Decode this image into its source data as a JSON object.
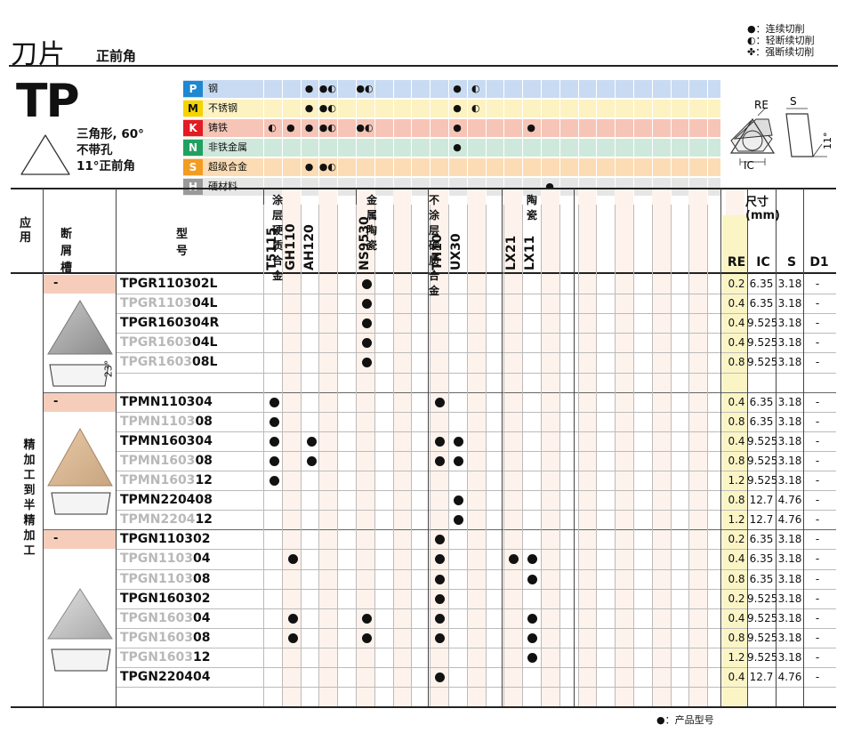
{
  "header": {
    "title": "刀片",
    "subtitle": "正前角"
  },
  "legend": [
    {
      "sym": "●",
      "text": "：连续切削"
    },
    {
      "sym": "◐",
      "text": "：轻断续切削"
    },
    {
      "sym": "✤",
      "text": "：强断续切削"
    }
  ],
  "series": {
    "name": "TP",
    "shape": "三角形, 60°",
    "hole": "不带孔",
    "angle": "11°正前角"
  },
  "materials": [
    {
      "letter": "P",
      "name": "钢",
      "color": "#c8dbf2",
      "lcolor": "#1e88d0",
      "marks": [
        {
          "c": 3,
          "s": "●"
        },
        {
          "c": 4,
          "s": "●◐"
        },
        {
          "c": 6,
          "s": "●◐"
        },
        {
          "c": 11,
          "s": "●"
        },
        {
          "c": 12,
          "s": "◐"
        }
      ]
    },
    {
      "letter": "M",
      "name": "不锈钢",
      "color": "#fdf2c2",
      "lcolor": "#f5d300",
      "marks": [
        {
          "c": 3,
          "s": "●"
        },
        {
          "c": 4,
          "s": "●◐"
        },
        {
          "c": 11,
          "s": "●"
        },
        {
          "c": 12,
          "s": "◐"
        }
      ]
    },
    {
      "letter": "K",
      "name": "铸铁",
      "color": "#f6c5b7",
      "lcolor": "#e31b23",
      "marks": [
        {
          "c": 1,
          "s": "◐"
        },
        {
          "c": 2,
          "s": "●"
        },
        {
          "c": 3,
          "s": "●"
        },
        {
          "c": 4,
          "s": "●◐"
        },
        {
          "c": 6,
          "s": "●◐"
        },
        {
          "c": 11,
          "s": "●"
        },
        {
          "c": 15,
          "s": "●"
        }
      ]
    },
    {
      "letter": "N",
      "name": "非铁金属",
      "color": "#cfe8dc",
      "lcolor": "#22a060",
      "marks": [
        {
          "c": 11,
          "s": "●"
        }
      ]
    },
    {
      "letter": "S",
      "name": "超级合金",
      "color": "#fbdcb4",
      "lcolor": "#f39c22",
      "marks": [
        {
          "c": 3,
          "s": "●"
        },
        {
          "c": 4,
          "s": "●◐"
        }
      ]
    },
    {
      "letter": "H",
      "name": "硬材料",
      "color": "#e6e6e6",
      "lcolor": "#9a9a9a",
      "marks": [
        {
          "c": 16,
          "s": "●"
        }
      ]
    }
  ],
  "geometry": {
    "re": "RE",
    "s": "S",
    "ic": "IC",
    "angle": "11°"
  },
  "table": {
    "col_app": "应用",
    "col_chip": "断屑槽",
    "col_model": "型号",
    "groups": [
      "涂层硬质合金",
      "金属陶瓷",
      "不涂层硬质合金",
      "陶瓷"
    ],
    "grades": [
      "T5115",
      "GH110",
      "AH120",
      "NS9530",
      "TH10",
      "UX30",
      "LX21",
      "LX11"
    ],
    "size_title": "尺寸 (mm)",
    "size_cols": [
      "RE",
      "IC",
      "S",
      "D1"
    ],
    "application": "精加工到半精加工",
    "chip_dash": "-",
    "rows": [
      {
        "b": "TPGR110302L",
        "g": "",
        "dots": [
          3
        ],
        "re": "0.2",
        "ic": "6.35",
        "s": "3.18",
        "d": "-"
      },
      {
        "b": "04L",
        "g": "TPGR1103",
        "dots": [
          3
        ],
        "re": "0.4",
        "ic": "6.35",
        "s": "3.18",
        "d": "-"
      },
      {
        "b": "TPGR160304R",
        "g": "",
        "dots": [
          3
        ],
        "re": "0.4",
        "ic": "9.525",
        "s": "3.18",
        "d": "-"
      },
      {
        "b": "04L",
        "g": "TPGR1603",
        "dots": [
          3
        ],
        "re": "0.4",
        "ic": "9.525",
        "s": "3.18",
        "d": "-"
      },
      {
        "b": "08L",
        "g": "TPGR1603",
        "dots": [
          3
        ],
        "re": "0.8",
        "ic": "9.525",
        "s": "3.18",
        "d": "-"
      },
      {
        "b": "",
        "g": "",
        "dots": [],
        "re": "",
        "ic": "",
        "s": "",
        "d": ""
      },
      {
        "b": "TPMN110304",
        "g": "",
        "dots": [
          0,
          4
        ],
        "re": "0.4",
        "ic": "6.35",
        "s": "3.18",
        "d": "-"
      },
      {
        "b": "08",
        "g": "TPMN1103",
        "dots": [
          0
        ],
        "re": "0.8",
        "ic": "6.35",
        "s": "3.18",
        "d": "-"
      },
      {
        "b": "TPMN160304",
        "g": "",
        "dots": [
          0,
          2,
          4,
          5
        ],
        "re": "0.4",
        "ic": "9.525",
        "s": "3.18",
        "d": "-"
      },
      {
        "b": "08",
        "g": "TPMN1603",
        "dots": [
          0,
          2,
          4,
          5
        ],
        "re": "0.8",
        "ic": "9.525",
        "s": "3.18",
        "d": "-"
      },
      {
        "b": "12",
        "g": "TPMN1603",
        "dots": [
          0
        ],
        "re": "1.2",
        "ic": "9.525",
        "s": "3.18",
        "d": "-"
      },
      {
        "b": "TPMN220408",
        "g": "",
        "dots": [
          5
        ],
        "re": "0.8",
        "ic": "12.7",
        "s": "4.76",
        "d": "-"
      },
      {
        "b": "12",
        "g": "TPMN2204",
        "dots": [
          5
        ],
        "re": "1.2",
        "ic": "12.7",
        "s": "4.76",
        "d": "-"
      },
      {
        "b": "TPGN110302",
        "g": "",
        "dots": [
          4
        ],
        "re": "0.2",
        "ic": "6.35",
        "s": "3.18",
        "d": "-"
      },
      {
        "b": "04",
        "g": "TPGN1103",
        "dots": [
          1,
          4,
          6,
          7
        ],
        "re": "0.4",
        "ic": "6.35",
        "s": "3.18",
        "d": "-"
      },
      {
        "b": "08",
        "g": "TPGN1103",
        "dots": [
          4,
          7
        ],
        "re": "0.8",
        "ic": "6.35",
        "s": "3.18",
        "d": "-"
      },
      {
        "b": "TPGN160302",
        "g": "",
        "dots": [
          4
        ],
        "re": "0.2",
        "ic": "9.525",
        "s": "3.18",
        "d": "-"
      },
      {
        "b": "04",
        "g": "TPGN1603",
        "dots": [
          1,
          3,
          4,
          7
        ],
        "re": "0.4",
        "ic": "9.525",
        "s": "3.18",
        "d": "-"
      },
      {
        "b": "08",
        "g": "TPGN1603",
        "dots": [
          1,
          3,
          4,
          7
        ],
        "re": "0.8",
        "ic": "9.525",
        "s": "3.18",
        "d": "-"
      },
      {
        "b": "12",
        "g": "TPGN1603",
        "dots": [
          7
        ],
        "re": "1.2",
        "ic": "9.525",
        "s": "3.18",
        "d": "-"
      },
      {
        "b": "TPGN220404",
        "g": "",
        "dots": [
          4
        ],
        "re": "0.4",
        "ic": "12.7",
        "s": "4.76",
        "d": "-"
      },
      {
        "b": "",
        "g": "",
        "dots": [],
        "re": "",
        "ic": "",
        "s": "",
        "d": ""
      }
    ],
    "insert_angle": "23°"
  },
  "footnote": "●：产品型号"
}
